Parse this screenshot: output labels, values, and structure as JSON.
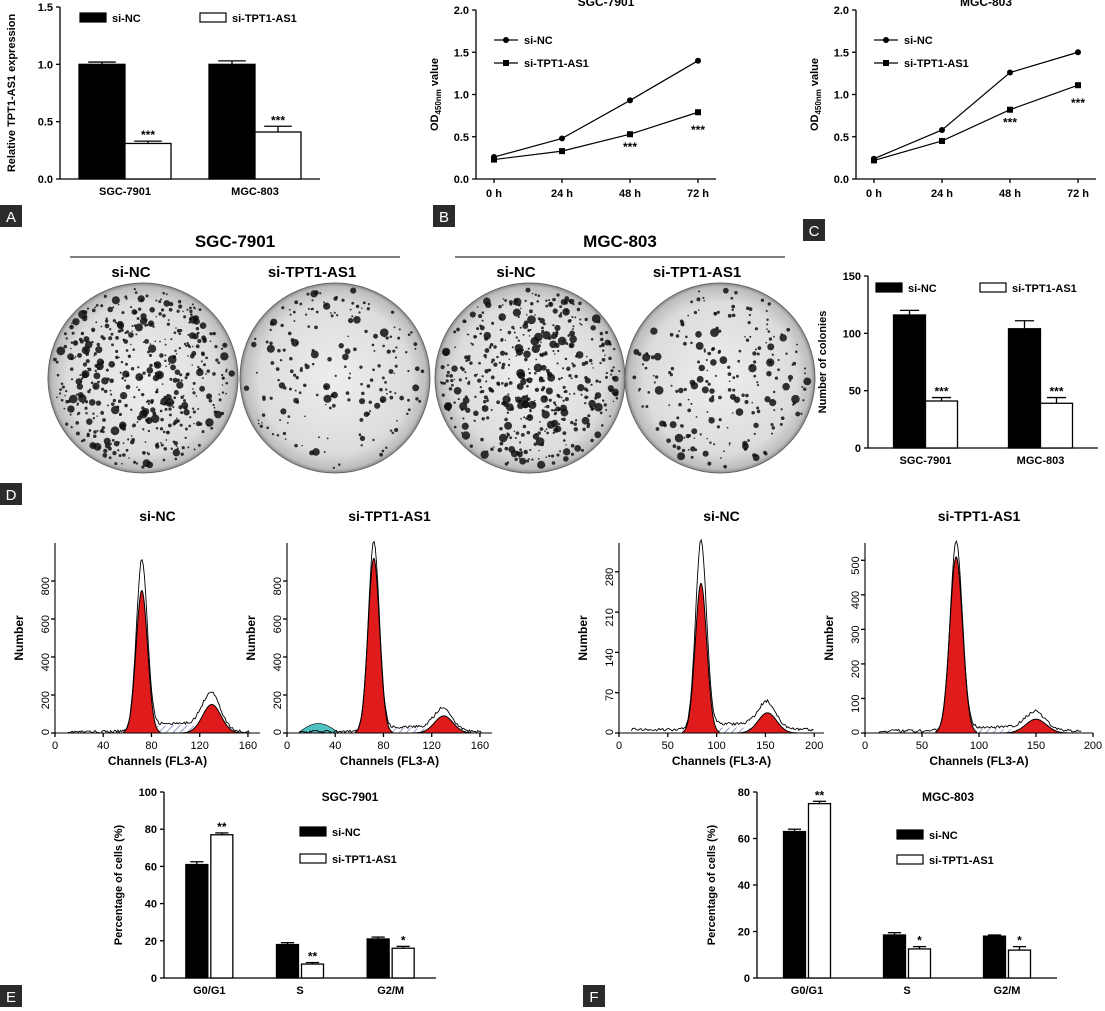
{
  "panel_letters": [
    "A",
    "B",
    "C",
    "D",
    "E",
    "F"
  ],
  "colony": {
    "groups": [
      {
        "title": "SGC-7901",
        "subs": [
          "si-NC",
          "si-TPT1-AS1"
        ]
      },
      {
        "title": "MGC-803",
        "subs": [
          "si-NC",
          "si-TPT1-AS1"
        ]
      }
    ]
  },
  "flow_titles": [
    "si-NC",
    "si-TPT1-AS1",
    "si-NC",
    "si-TPT1-AS1"
  ],
  "chart_data": [
    {
      "id": "A",
      "type": "bar",
      "ylabel": "Relative TPT1-AS1 expression",
      "categories": [
        "SGC-7901",
        "MGC-803"
      ],
      "ylim": [
        0,
        1.5
      ],
      "yticks": [
        "0.0",
        "0.5",
        "1.0",
        "1.5"
      ],
      "legend": "top",
      "series": [
        {
          "name": "si-NC",
          "values": [
            1.0,
            1.0
          ],
          "errors": [
            0.02,
            0.03
          ],
          "color": "#000000"
        },
        {
          "name": "si-TPT1-AS1",
          "values": [
            0.31,
            0.41
          ],
          "errors": [
            0.02,
            0.05
          ],
          "color": "#ffffff"
        }
      ],
      "annotations": [
        "",
        "",
        "***",
        "***"
      ]
    },
    {
      "id": "B",
      "type": "line",
      "title": "SGC-7901",
      "ylabel_pre": "OD",
      "ylabel_sub": "450nm",
      "ylabel_post": " value",
      "categories": [
        "0 h",
        "24 h",
        "48 h",
        "72 h"
      ],
      "ylim": [
        0,
        2.0
      ],
      "yticks": [
        "0.0",
        "0.5",
        "1.0",
        "1.5",
        "2.0"
      ],
      "legend": "top-left",
      "series": [
        {
          "name": "si-NC",
          "marker": "circle",
          "values": [
            0.26,
            0.48,
            0.93,
            1.4
          ]
        },
        {
          "name": "si-TPT1-AS1",
          "marker": "square",
          "values": [
            0.23,
            0.33,
            0.53,
            0.79
          ]
        }
      ],
      "annotations": [
        "",
        "",
        "***",
        "***"
      ]
    },
    {
      "id": "C",
      "type": "line",
      "title": "MGC-803",
      "ylabel_pre": "OD",
      "ylabel_sub": "450nm",
      "ylabel_post": " value",
      "categories": [
        "0 h",
        "24 h",
        "48 h",
        "72 h"
      ],
      "ylim": [
        0,
        2.0
      ],
      "yticks": [
        "0.0",
        "0.5",
        "1.0",
        "1.5",
        "2.0"
      ],
      "legend": "top-left",
      "series": [
        {
          "name": "si-NC",
          "marker": "circle",
          "values": [
            0.24,
            0.58,
            1.26,
            1.5
          ]
        },
        {
          "name": "si-TPT1-AS1",
          "marker": "square",
          "values": [
            0.22,
            0.45,
            0.82,
            1.11
          ]
        }
      ],
      "annotations": [
        "",
        "",
        "***",
        "***"
      ]
    },
    {
      "id": "D",
      "type": "bar",
      "ylabel": "Number of colonies",
      "categories": [
        "SGC-7901",
        "MGC-803"
      ],
      "ylim": [
        0,
        150
      ],
      "yticks": [
        "0",
        "50",
        "100",
        "150"
      ],
      "legend": "top",
      "series": [
        {
          "name": "si-NC",
          "values": [
            116,
            104
          ],
          "errors": [
            4,
            7
          ],
          "color": "#000000"
        },
        {
          "name": "si-TPT1-AS1",
          "values": [
            41,
            39
          ],
          "errors": [
            3,
            5
          ],
          "color": "#ffffff"
        }
      ],
      "annotations": [
        "",
        "",
        "***",
        "***"
      ]
    },
    {
      "id": "flow1",
      "type": "area",
      "xlabel": "Channels (FL3-A)",
      "ylabel": "Number",
      "xlim": [
        0,
        170
      ],
      "xticks": [
        "0",
        "40",
        "80",
        "120",
        "160"
      ],
      "ylim": [
        0,
        1000
      ],
      "yticks": [
        "0",
        "200",
        "400",
        "600",
        "800"
      ],
      "peaks": [
        {
          "label": "G0/G1",
          "center": 72,
          "height": 750
        },
        {
          "label": "G2/M",
          "center": 130,
          "height": 150
        }
      ],
      "outline_max": 870
    },
    {
      "id": "flow2",
      "type": "area",
      "xlabel": "Channels (FL3-A)",
      "ylabel": "Number",
      "xlim": [
        0,
        170
      ],
      "xticks": [
        "0",
        "40",
        "80",
        "120",
        "160"
      ],
      "ylim": [
        0,
        1000
      ],
      "yticks": [
        "0",
        "200",
        "400",
        "600",
        "800"
      ],
      "peaks": [
        {
          "label": "G0/G1",
          "center": 72,
          "height": 920
        },
        {
          "label": "G2/M",
          "center": 130,
          "height": 90
        }
      ],
      "outline_max": 980
    },
    {
      "id": "flow3",
      "type": "area",
      "xlabel": "Channels (FL3-A)",
      "ylabel": "Number",
      "xlim": [
        0,
        210
      ],
      "xticks": [
        "0",
        "50",
        "100",
        "150",
        "200"
      ],
      "ylim": [
        0,
        330
      ],
      "yticks": [
        "0",
        "70",
        "140",
        "210",
        "280"
      ],
      "peaks": [
        {
          "label": "G0/G1",
          "center": 84,
          "height": 260
        },
        {
          "label": "G2/M",
          "center": 152,
          "height": 35
        }
      ],
      "outline_max": 320
    },
    {
      "id": "flow4",
      "type": "area",
      "xlabel": "Channels (FL3-A)",
      "ylabel": "Number",
      "xlim": [
        0,
        200
      ],
      "xticks": [
        "0",
        "50",
        "100",
        "150",
        "200"
      ],
      "ylim": [
        0,
        550
      ],
      "yticks": [
        "0",
        "100",
        "200",
        "300",
        "400",
        "500"
      ],
      "peaks": [
        {
          "label": "G0/G1",
          "center": 80,
          "height": 510
        },
        {
          "label": "G2/M",
          "center": 150,
          "height": 40
        }
      ],
      "outline_max": 540
    },
    {
      "id": "E",
      "type": "bar",
      "title": "SGC-7901",
      "ylabel": "Percentage of cells (%)",
      "categories": [
        "G0/G1",
        "S",
        "G2/M"
      ],
      "ylim": [
        0,
        100
      ],
      "yticks": [
        "0",
        "20",
        "40",
        "60",
        "80",
        "100"
      ],
      "legend": "right",
      "series": [
        {
          "name": "si-NC",
          "values": [
            61,
            18,
            21
          ],
          "errors": [
            1.5,
            1,
            1
          ],
          "color": "#000000"
        },
        {
          "name": "si-TPT1-AS1",
          "values": [
            77,
            7.5,
            16
          ],
          "errors": [
            1,
            0.8,
            1
          ],
          "color": "#ffffff"
        }
      ],
      "annotations": [
        "",
        "",
        "",
        "**",
        "**",
        "*"
      ]
    },
    {
      "id": "F",
      "type": "bar",
      "title": "MGC-803",
      "ylabel": "Percentage of cells (%)",
      "categories": [
        "G0/G1",
        "S",
        "G2/M"
      ],
      "ylim": [
        0,
        80
      ],
      "yticks": [
        "0",
        "20",
        "40",
        "60",
        "80"
      ],
      "legend": "right",
      "series": [
        {
          "name": "si-NC",
          "values": [
            63,
            18.5,
            18
          ],
          "errors": [
            1,
            1,
            0.5
          ],
          "color": "#000000"
        },
        {
          "name": "si-TPT1-AS1",
          "values": [
            75,
            12.5,
            12
          ],
          "errors": [
            1,
            1,
            1.5
          ],
          "color": "#ffffff"
        }
      ],
      "annotations": [
        "",
        "",
        "",
        "**",
        "*",
        "*"
      ]
    }
  ]
}
